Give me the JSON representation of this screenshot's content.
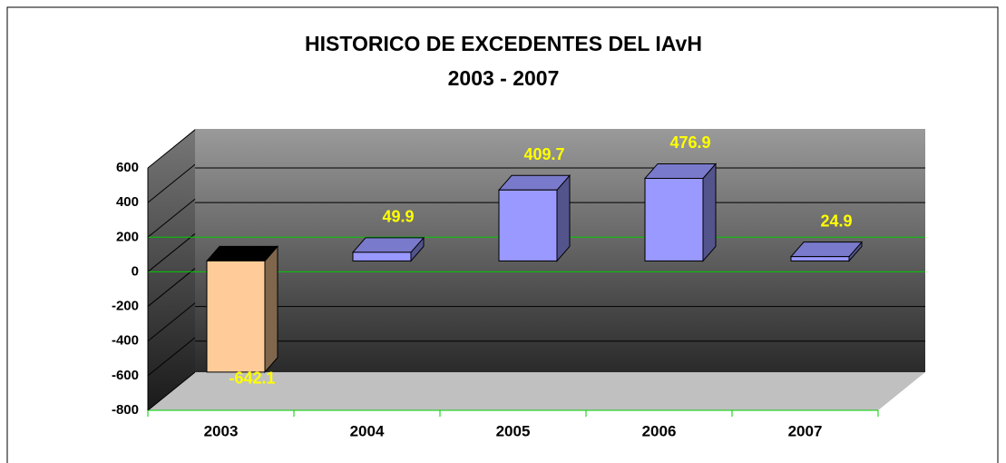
{
  "chart_data": {
    "type": "bar3d",
    "title": "HISTORICO DE EXCEDENTES DEL IAvH",
    "subtitle": "2003 - 2007",
    "categories": [
      "2003",
      "2004",
      "2005",
      "2006",
      "2007"
    ],
    "values": [
      -642.1,
      49.9,
      409.7,
      476.9,
      24.9
    ],
    "colors": [
      "#ffcc99",
      "#9999ff",
      "#9999ff",
      "#9999ff",
      "#9999ff"
    ],
    "label_color": "#ffff00",
    "ylim": [
      -800,
      600
    ],
    "yticks": [
      -800,
      -600,
      -400,
      -200,
      0,
      200,
      400,
      600
    ],
    "grid": true
  }
}
